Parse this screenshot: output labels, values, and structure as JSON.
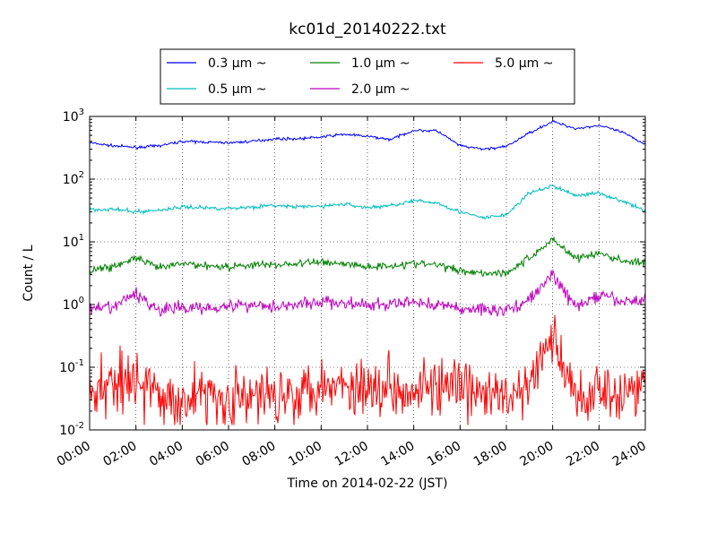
{
  "chart_data": {
    "type": "line",
    "title": "kc01d_20140222.txt",
    "xlabel": "Time on 2014-02-22 (JST)",
    "ylabel": "Count / L",
    "yscale": "log",
    "ylim": [
      0.01,
      1000
    ],
    "xlim": [
      "00:00",
      "24:00"
    ],
    "x_ticks": [
      "00:00",
      "02:00",
      "04:00",
      "06:00",
      "08:00",
      "10:00",
      "12:00",
      "14:00",
      "16:00",
      "18:00",
      "20:00",
      "22:00",
      "24:00"
    ],
    "y_ticks": [
      {
        "value": 0.01,
        "base": "10",
        "exp": "-2"
      },
      {
        "value": 0.1,
        "base": "10",
        "exp": "-1"
      },
      {
        "value": 1,
        "base": "10",
        "exp": "0"
      },
      {
        "value": 10,
        "base": "10",
        "exp": "1"
      },
      {
        "value": 100,
        "base": "10",
        "exp": "2"
      },
      {
        "value": 1000,
        "base": "10",
        "exp": "3"
      }
    ],
    "grid": true,
    "legend_placement": "top",
    "legend_columns": 3,
    "x": [
      "00:00",
      "01:00",
      "02:00",
      "03:00",
      "04:00",
      "05:00",
      "06:00",
      "07:00",
      "08:00",
      "09:00",
      "10:00",
      "11:00",
      "12:00",
      "13:00",
      "14:00",
      "15:00",
      "16:00",
      "17:00",
      "18:00",
      "19:00",
      "20:00",
      "21:00",
      "22:00",
      "23:00",
      "24:00"
    ],
    "series": [
      {
        "name": "0.3 μm ~",
        "color": "#0000ff",
        "noise": 0.02,
        "values": [
          380,
          340,
          320,
          340,
          400,
          390,
          380,
          400,
          440,
          440,
          470,
          520,
          480,
          430,
          600,
          590,
          340,
          300,
          330,
          550,
          830,
          640,
          720,
          560,
          360
        ]
      },
      {
        "name": "0.5 μm ~",
        "color": "#00bfbf",
        "noise": 0.03,
        "values": [
          33,
          33,
          30,
          32,
          36,
          35,
          34,
          36,
          38,
          36,
          37,
          40,
          35,
          38,
          45,
          42,
          30,
          24,
          27,
          60,
          78,
          55,
          60,
          45,
          31
        ]
      },
      {
        "name": "1.0 μm ~",
        "color": "#008000",
        "noise": 0.06,
        "values": [
          3.6,
          4.0,
          5.5,
          3.8,
          4.5,
          4.2,
          4.0,
          4.3,
          4.3,
          4.5,
          4.8,
          4.5,
          4.0,
          4.2,
          4.5,
          4.3,
          3.5,
          3.2,
          3.2,
          5.5,
          11,
          5.5,
          6.5,
          5.0,
          4.6
        ]
      },
      {
        "name": "2.0 μm ~",
        "color": "#bf00bf",
        "noise": 0.1,
        "values": [
          0.8,
          0.9,
          1.5,
          0.8,
          0.9,
          0.9,
          0.95,
          1.0,
          0.95,
          1.0,
          1.1,
          1.05,
          0.95,
          1.0,
          1.1,
          1.0,
          0.85,
          0.85,
          0.8,
          1.2,
          3.0,
          0.9,
          1.4,
          1.1,
          1.2
        ]
      },
      {
        "name": "5.0 μm ~",
        "color": "#ff0000",
        "noise": 0.45,
        "values": [
          0.04,
          0.06,
          0.07,
          0.03,
          0.03,
          0.04,
          0.03,
          0.03,
          0.04,
          0.04,
          0.06,
          0.05,
          0.05,
          0.05,
          0.05,
          0.05,
          0.04,
          0.04,
          0.03,
          0.05,
          0.3,
          0.03,
          0.05,
          0.04,
          0.05
        ]
      }
    ]
  }
}
